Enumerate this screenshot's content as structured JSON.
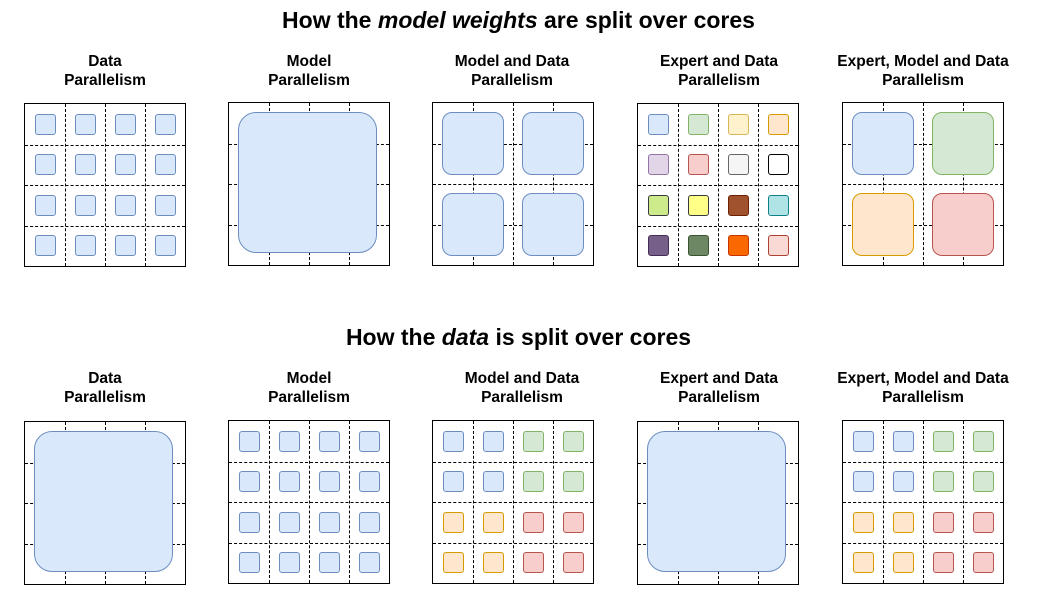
{
  "colors": {
    "blue": [
      "#dae8fc",
      "#6c8ebf"
    ],
    "green": [
      "#d5e8d4",
      "#82b366"
    ],
    "yellow": [
      "#fff2cc",
      "#d6b656"
    ],
    "orange": [
      "#ffe6cc",
      "#d79b00"
    ],
    "purple": [
      "#e1d5e7",
      "#9673a6"
    ],
    "red": [
      "#f8cecc",
      "#b85450"
    ],
    "gray": [
      "#f5f5f5",
      "#666666"
    ],
    "white": [
      "#ffffff",
      "#000000"
    ],
    "lime": [
      "#cdeb8b",
      "#36393d"
    ],
    "brightyellow": [
      "#ffff88",
      "#36393d"
    ],
    "brown": [
      "#a0522d",
      "#6d1f00"
    ],
    "cyan": [
      "#b0e3e6",
      "#0e8088"
    ],
    "darkpurple": [
      "#76608a",
      "#432d57"
    ],
    "darkgreen": [
      "#6d8764",
      "#3a5431"
    ],
    "brightorange": [
      "#fa6800",
      "#c73500"
    ],
    "pink": [
      "#fad9d5",
      "#ae4132"
    ]
  },
  "sections": [
    {
      "title_before": "How the ",
      "title_em": "model weights",
      "title_after": " are split over cores",
      "diagrams": [
        {
          "label_line1": "Data",
          "label_line2": "Parallelism",
          "layout": "small",
          "colors": [
            "blue",
            "blue",
            "blue",
            "blue",
            "blue",
            "blue",
            "blue",
            "blue",
            "blue",
            "blue",
            "blue",
            "blue",
            "blue",
            "blue",
            "blue",
            "blue"
          ]
        },
        {
          "label_line1": "Model",
          "label_line2": "Parallelism",
          "layout": "full",
          "colors": [
            "blue"
          ]
        },
        {
          "label_line1": "Model and Data",
          "label_line2": "Parallelism",
          "layout": "quad",
          "colors": [
            "blue",
            "blue",
            "blue",
            "blue"
          ]
        },
        {
          "label_line1": "Expert and Data",
          "label_line2": "Parallelism",
          "layout": "small",
          "colors": [
            "blue",
            "green",
            "yellow",
            "orange",
            "purple",
            "red",
            "gray",
            "white",
            "lime",
            "brightyellow",
            "brown",
            "cyan",
            "darkpurple",
            "darkgreen",
            "brightorange",
            "pink"
          ]
        },
        {
          "label_line1": "Expert, Model and Data",
          "label_line2": "Parallelism",
          "layout": "quad",
          "colors": [
            "blue",
            "green",
            "orange",
            "red"
          ]
        }
      ]
    },
    {
      "title_before": "How the ",
      "title_em": "data",
      "title_after": " is split over cores",
      "diagrams": [
        {
          "label_line1": "Data",
          "label_line2": "Parallelism",
          "layout": "full",
          "colors": [
            "blue"
          ]
        },
        {
          "label_line1": "Model",
          "label_line2": "Parallelism",
          "layout": "small",
          "colors": [
            "blue",
            "blue",
            "blue",
            "blue",
            "blue",
            "blue",
            "blue",
            "blue",
            "blue",
            "blue",
            "blue",
            "blue",
            "blue",
            "blue",
            "blue",
            "blue"
          ]
        },
        {
          "label_line1": "Model and Data",
          "label_line2": "Parallelism",
          "layout": "small",
          "colors": [
            "blue",
            "blue",
            "green",
            "green",
            "blue",
            "blue",
            "green",
            "green",
            "orange",
            "orange",
            "red",
            "red",
            "orange",
            "orange",
            "red",
            "red"
          ]
        },
        {
          "label_line1": "Expert and Data",
          "label_line2": "Parallelism",
          "layout": "full",
          "colors": [
            "blue"
          ]
        },
        {
          "label_line1": "Expert, Model and Data",
          "label_line2": "Parallelism",
          "layout": "small",
          "colors": [
            "blue",
            "blue",
            "green",
            "green",
            "blue",
            "blue",
            "green",
            "green",
            "orange",
            "orange",
            "red",
            "red",
            "orange",
            "orange",
            "red",
            "red"
          ]
        }
      ]
    }
  ]
}
